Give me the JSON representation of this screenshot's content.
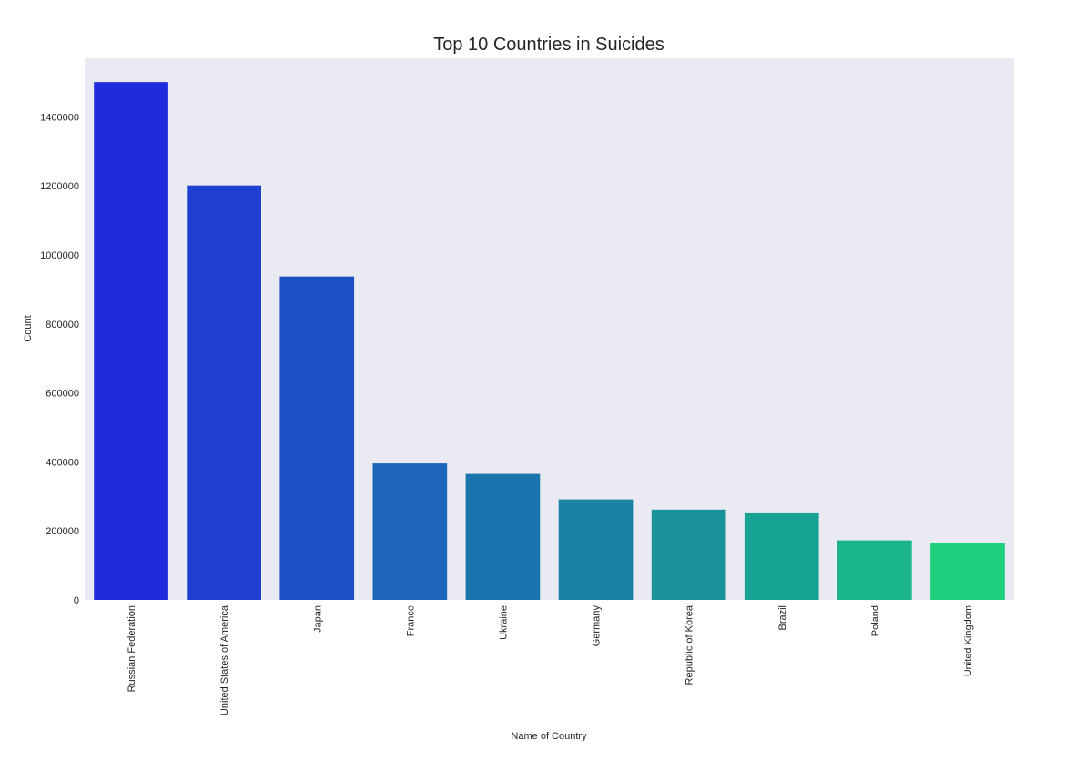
{
  "chart_data": {
    "type": "bar",
    "title": "Top 10 Countries in Suicides",
    "xlabel": "Name of Country",
    "ylabel": "Count",
    "categories": [
      "Russian Federation",
      "United States of America",
      "Japan",
      "France",
      "Ukraine",
      "Germany",
      "Republic of Korea",
      "Brazil",
      "Poland",
      "United Kingdom"
    ],
    "values": [
      1500992,
      1201401,
      937614,
      395500,
      365200,
      291262,
      261730,
      250824,
      172562,
      165700
    ],
    "ylim": [
      0,
      1570000
    ],
    "yticks": [
      0,
      200000,
      400000,
      600000,
      800000,
      1000000,
      1200000,
      1400000
    ],
    "grid": false,
    "colors": [
      "#1f2bdc",
      "#1e3fd0",
      "#1e4fc6",
      "#1d65b8",
      "#1b74ae",
      "#1a82a2",
      "#19929a",
      "#17a393",
      "#1ab58a",
      "#1dd07e"
    ],
    "background": "#eaeaf2"
  }
}
